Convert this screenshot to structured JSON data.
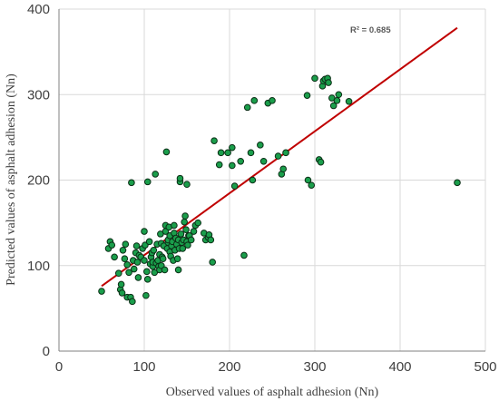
{
  "chart_data": {
    "type": "scatter",
    "xlabel": "Observed values of asphalt adhesion (Nn)",
    "ylabel": "Predicted values of asphalt adhesion (Nn)",
    "xlim": [
      0,
      500
    ],
    "ylim": [
      0,
      400
    ],
    "xticks": [
      0,
      100,
      200,
      300,
      400,
      500
    ],
    "yticks": [
      0,
      100,
      200,
      300,
      400
    ],
    "grid": true,
    "annotation": "R² = 0.685",
    "colors": {
      "marker_fill": "#1a9e4b",
      "marker_stroke": "#0b2e16",
      "trendline": "#c00000",
      "grid": "#d9d9d9",
      "axis": "#808080"
    },
    "trendline": {
      "x": [
        50,
        467
      ],
      "y": [
        76,
        378
      ]
    },
    "series": [
      {
        "points": [
          [
            50,
            70
          ],
          [
            58,
            120
          ],
          [
            60,
            128
          ],
          [
            62,
            124
          ],
          [
            65,
            110
          ],
          [
            70,
            91
          ],
          [
            72,
            72
          ],
          [
            73,
            78
          ],
          [
            74,
            68
          ],
          [
            75,
            118
          ],
          [
            77,
            108
          ],
          [
            78,
            125
          ],
          [
            80,
            63
          ],
          [
            80,
            101
          ],
          [
            82,
            92
          ],
          [
            84,
            63
          ],
          [
            85,
            197
          ],
          [
            86,
            58
          ],
          [
            87,
            106
          ],
          [
            88,
            96
          ],
          [
            90,
            115
          ],
          [
            91,
            123
          ],
          [
            92,
            104
          ],
          [
            93,
            86
          ],
          [
            94,
            112
          ],
          [
            96,
            110
          ],
          [
            98,
            120
          ],
          [
            100,
            140
          ],
          [
            100,
            106
          ],
          [
            101,
            124
          ],
          [
            102,
            65
          ],
          [
            103,
            93
          ],
          [
            104,
            198
          ],
          [
            104,
            84
          ],
          [
            106,
            128
          ],
          [
            107,
            102
          ],
          [
            108,
            110
          ],
          [
            109,
            115
          ],
          [
            110,
            99
          ],
          [
            110,
            104
          ],
          [
            111,
            118
          ],
          [
            112,
            92
          ],
          [
            113,
            207
          ],
          [
            114,
            103
          ],
          [
            115,
            125
          ],
          [
            116,
            106
          ],
          [
            117,
            99
          ],
          [
            118,
            95
          ],
          [
            118,
            113
          ],
          [
            119,
            137
          ],
          [
            120,
            100
          ],
          [
            120,
            126
          ],
          [
            121,
            110
          ],
          [
            122,
            108
          ],
          [
            123,
            123
          ],
          [
            124,
            95
          ],
          [
            125,
            140
          ],
          [
            125,
            147
          ],
          [
            126,
            233
          ],
          [
            127,
            120
          ],
          [
            128,
            127
          ],
          [
            128,
            130
          ],
          [
            129,
            145
          ],
          [
            130,
            116
          ],
          [
            130,
            135
          ],
          [
            131,
            111
          ],
          [
            132,
            123
          ],
          [
            133,
            128
          ],
          [
            134,
            106
          ],
          [
            135,
            147
          ],
          [
            135,
            138
          ],
          [
            136,
            118
          ],
          [
            137,
            132
          ],
          [
            138,
            125
          ],
          [
            139,
            108
          ],
          [
            140,
            130
          ],
          [
            140,
            95
          ],
          [
            141,
            120
          ],
          [
            142,
            198
          ],
          [
            142,
            202
          ],
          [
            143,
            137
          ],
          [
            144,
            127
          ],
          [
            145,
            120
          ],
          [
            146,
            130
          ],
          [
            147,
            151
          ],
          [
            148,
            158
          ],
          [
            149,
            142
          ],
          [
            150,
            195
          ],
          [
            150,
            128
          ],
          [
            151,
            124
          ],
          [
            152,
            135
          ],
          [
            153,
            135
          ],
          [
            155,
            130
          ],
          [
            158,
            140
          ],
          [
            160,
            147
          ],
          [
            163,
            150
          ],
          [
            170,
            138
          ],
          [
            172,
            130
          ],
          [
            175,
            133
          ],
          [
            176,
            136
          ],
          [
            178,
            130
          ],
          [
            180,
            104
          ],
          [
            182,
            246
          ],
          [
            188,
            218
          ],
          [
            190,
            232
          ],
          [
            198,
            232
          ],
          [
            203,
            238
          ],
          [
            203,
            217
          ],
          [
            206,
            193
          ],
          [
            213,
            222
          ],
          [
            217,
            112
          ],
          [
            221,
            285
          ],
          [
            225,
            232
          ],
          [
            227,
            200
          ],
          [
            229,
            293
          ],
          [
            236,
            241
          ],
          [
            240,
            222
          ],
          [
            245,
            290
          ],
          [
            250,
            293
          ],
          [
            257,
            228
          ],
          [
            261,
            207
          ],
          [
            263,
            213
          ],
          [
            266,
            232
          ],
          [
            291,
            299
          ],
          [
            292,
            200
          ],
          [
            296,
            194
          ],
          [
            300,
            319
          ],
          [
            305,
            224
          ],
          [
            307,
            221
          ],
          [
            309,
            310
          ],
          [
            310,
            316
          ],
          [
            312,
            318
          ],
          [
            315,
            319
          ],
          [
            316,
            314
          ],
          [
            320,
            296
          ],
          [
            322,
            287
          ],
          [
            326,
            293
          ],
          [
            328,
            300
          ],
          [
            340,
            292
          ],
          [
            467,
            197
          ]
        ]
      }
    ]
  }
}
